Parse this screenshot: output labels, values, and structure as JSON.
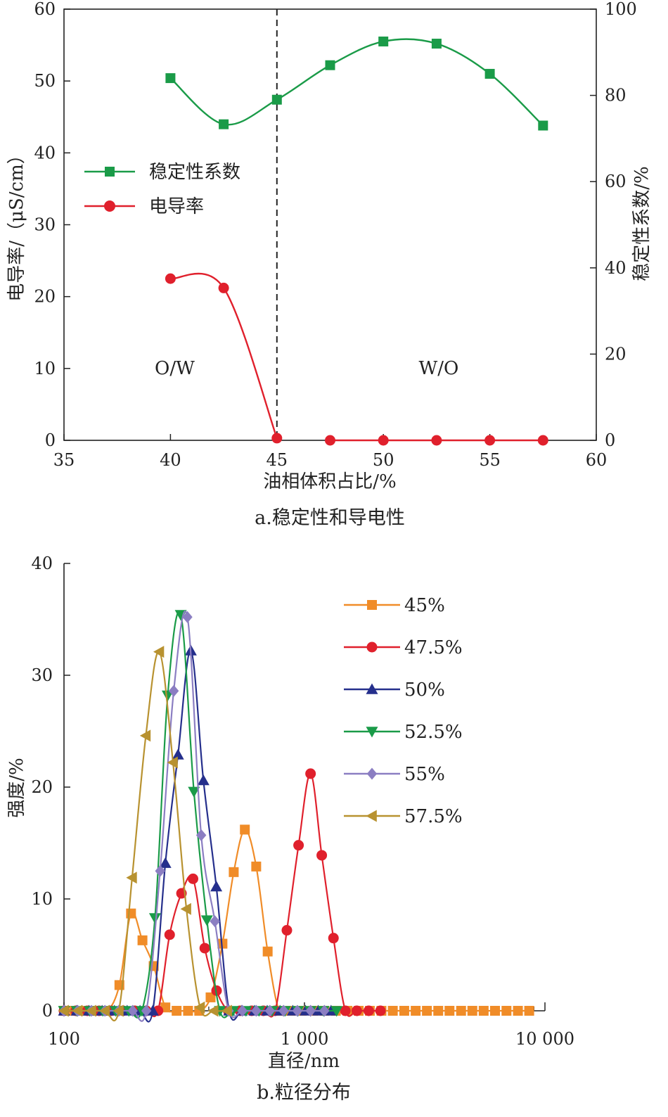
{
  "chart_data": [
    {
      "type": "line",
      "caption": "a.稳定性和导电性",
      "xlabel": "油相体积占比/%",
      "ylabel_left": "电导率/（μS/cm）",
      "ylabel_right": "稳定性系数/%",
      "xlim": [
        35,
        60
      ],
      "ylim_left": [
        0,
        60
      ],
      "ylim_right": [
        0,
        100
      ],
      "xticks": [
        "35",
        "40",
        "45",
        "50",
        "55",
        "60"
      ],
      "yticks_left": [
        "0",
        "10",
        "20",
        "30",
        "40",
        "50",
        "60"
      ],
      "yticks_right": [
        "0",
        "20",
        "40",
        "60",
        "80",
        "100"
      ],
      "divider_x": 45,
      "regions": [
        {
          "label": "O/W",
          "x": 40.2,
          "y_left": 9.2
        },
        {
          "label": "W/O",
          "x": 52.6,
          "y_left": 9.2
        }
      ],
      "legend_position": "upper-left",
      "series": [
        {
          "name": "稳定性系数",
          "axis": "right",
          "color": "#1a9b48",
          "marker": "square",
          "x": [
            40,
            42.5,
            45,
            47.5,
            50,
            52.5,
            55,
            57.5
          ],
          "y": [
            84,
            73.3,
            79,
            87,
            92.5,
            92,
            85,
            73
          ]
        },
        {
          "name": "电导率",
          "axis": "left",
          "color": "#e0202c",
          "marker": "circle",
          "x": [
            40,
            42.5,
            45,
            47.5,
            50,
            52.5,
            55,
            57.5
          ],
          "y": [
            22.5,
            21.2,
            0.3,
            0,
            0,
            0,
            0,
            0
          ]
        }
      ]
    },
    {
      "type": "line",
      "caption": "b.粒径分布",
      "xlabel": "直径/nm",
      "ylabel": "强度/%",
      "xscale": "log",
      "xlim": [
        100,
        10000
      ],
      "ylim": [
        0,
        40
      ],
      "xticks": [
        "100",
        "1 000",
        "10 000"
      ],
      "yticks": [
        "0",
        "10",
        "20",
        "30",
        "40"
      ],
      "legend_position": "upper-right",
      "series": [
        {
          "name": "45%",
          "color": "#f08c28",
          "marker": "square",
          "x": [
            100,
            110,
            123,
            137,
            152,
            170,
            190,
            212,
            236,
            264,
            294,
            328,
            365,
            407,
            456,
            508,
            565,
            630,
            703,
            784,
            874,
            975,
            1090,
            1210,
            1350,
            1510,
            1680,
            1870,
            2090,
            2330,
            2600,
            2900,
            3230,
            3600,
            4010,
            4480,
            4990,
            5560,
            6200,
            6920,
            7720,
            8600
          ],
          "y": [
            0,
            0,
            0,
            0,
            0,
            2.3,
            8.7,
            6.3,
            4,
            0.3,
            0,
            0,
            0,
            1.2,
            6,
            12.4,
            16.2,
            12.9,
            5.3,
            0,
            0,
            0,
            0,
            0,
            0,
            0,
            0,
            0,
            0,
            0,
            0,
            0,
            0,
            0,
            0,
            0,
            0,
            0,
            0,
            0,
            0,
            0
          ]
        },
        {
          "name": "47.5%",
          "color": "#e0202c",
          "marker": "circle",
          "x": [
            100,
            112,
            125,
            140,
            157,
            176,
            197,
            220,
            246,
            275,
            308,
            344,
            385,
            431,
            482,
            539,
            603,
            675,
            755,
            845,
            945,
            1060,
            1180,
            1320,
            1480,
            1650,
            1850,
            2070
          ],
          "y": [
            0,
            0,
            0,
            0,
            0,
            0,
            0,
            0,
            0,
            6.8,
            10.5,
            11.8,
            5.6,
            1.8,
            0,
            0,
            0,
            0,
            0,
            7.2,
            14.8,
            21.2,
            13.9,
            6.5,
            0,
            0,
            0,
            0
          ]
        },
        {
          "name": "50%",
          "color": "#252f8c",
          "marker": "triangle-up",
          "x": [
            100,
            113,
            127,
            144,
            162,
            183,
            207,
            234,
            264,
            298,
            337,
            380,
            430,
            486,
            549,
            620,
            700,
            791,
            894,
            1010,
            1140,
            1290
          ],
          "y": [
            0,
            0,
            0,
            0,
            0,
            0,
            0,
            0,
            13.2,
            22.9,
            32.2,
            20.6,
            11.1,
            0,
            0,
            0,
            0,
            0,
            0,
            0,
            0,
            0
          ]
        },
        {
          "name": "52.5%",
          "color": "#1a9b48",
          "marker": "triangle-down",
          "x": [
            100,
            113,
            128,
            145,
            164,
            186,
            211,
            239,
            270,
            306,
            347,
            393,
            445,
            504,
            571,
            647,
            733,
            830,
            940,
            1060,
            1200,
            1360
          ],
          "y": [
            0,
            0,
            0,
            0,
            0,
            0,
            0,
            8.3,
            28.2,
            35.4,
            19.6,
            8.1,
            0,
            0,
            0,
            0,
            0,
            0,
            0,
            0,
            0,
            0
          ]
        },
        {
          "name": "55%",
          "color": "#8b7ec2",
          "marker": "diamond",
          "x": [
            100,
            114,
            130,
            148,
            169,
            193,
            220,
            251,
            286,
            326,
            372,
            424,
            484,
            552,
            630,
            718,
            819,
            934,
            1060,
            1210
          ],
          "y": [
            0,
            0,
            0,
            0,
            0,
            0,
            0,
            12.5,
            28.6,
            35.2,
            15.7,
            8,
            0,
            0,
            0,
            0,
            0,
            0,
            0,
            0
          ]
        },
        {
          "name": "57.5%",
          "color": "#b89230",
          "marker": "triangle-left",
          "x": [
            100,
            114,
            130,
            148,
            169,
            192,
            219,
            249,
            284,
            323,
            368,
            419,
            477
          ],
          "y": [
            0,
            0,
            0,
            0,
            0,
            11.9,
            24.6,
            32.1,
            22.2,
            9.1,
            0.3,
            0,
            0
          ]
        }
      ]
    }
  ]
}
